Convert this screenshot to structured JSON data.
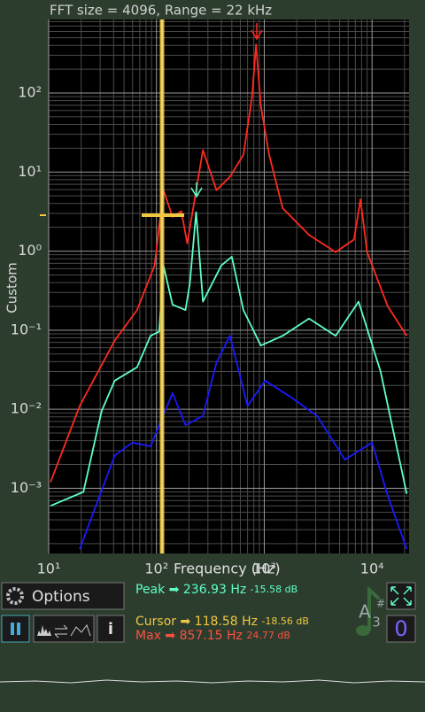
{
  "header": {
    "title": "FFT size = 4096, Range = 22 kHz"
  },
  "chart_data": {
    "type": "line",
    "x_label": "Frequency (Hz)",
    "y_label": "Custom",
    "log_x": true,
    "log_y": true,
    "grid": true,
    "xlim": [
      10,
      22050
    ],
    "ylim": [
      0.00015,
      850
    ],
    "xticks": [
      {
        "value": 10,
        "label": "10¹"
      },
      {
        "value": 100,
        "label": "10²"
      },
      {
        "value": 1000,
        "label": "10³"
      },
      {
        "value": 10000,
        "label": "10⁴"
      }
    ],
    "yticks": [
      {
        "value": 0.001,
        "label": "10⁻³"
      },
      {
        "value": 0.01,
        "label": "10⁻²"
      },
      {
        "value": 0.1,
        "label": "10⁻¹"
      },
      {
        "value": 1,
        "label": "10⁰"
      },
      {
        "value": 10,
        "label": "10¹"
      },
      {
        "value": 100,
        "label": "10²"
      }
    ],
    "series": [
      {
        "color": "#ff2a1f",
        "x": [
          10.4,
          19.4,
          41,
          66,
          96,
          116,
          141,
          170,
          193,
          270,
          360,
          480,
          640,
          770,
          840,
          930,
          1110,
          1480,
          2600,
          4600,
          6800,
          7800,
          9000,
          14000,
          21000
        ],
        "values": [
          0.0012,
          0.011,
          0.074,
          0.18,
          0.66,
          5.9,
          2.7,
          3.2,
          1.25,
          19,
          5.9,
          8.7,
          16.5,
          88,
          410,
          68,
          16.5,
          3.5,
          1.6,
          0.97,
          1.4,
          4.5,
          0.97,
          0.2,
          0.085
        ]
      },
      {
        "color": "#5effc8",
        "x": [
          10.4,
          21,
          31,
          41,
          66,
          88,
          106,
          116,
          141,
          186,
          204,
          233,
          270,
          400,
          500,
          640,
          930,
          1480,
          2600,
          4600,
          7500,
          12000,
          21000
        ],
        "values": [
          0.0006,
          0.0009,
          0.0095,
          0.023,
          0.034,
          0.085,
          0.096,
          0.66,
          0.21,
          0.18,
          0.39,
          3.1,
          0.23,
          0.66,
          0.85,
          0.18,
          0.064,
          0.085,
          0.14,
          0.085,
          0.23,
          0.03,
          0.00085
        ]
      },
      {
        "color": "#1a1aff",
        "x": [
          19.4,
          41,
          60,
          88,
          141,
          186,
          270,
          360,
          480,
          700,
          1020,
          1800,
          3100,
          5600,
          10000,
          14000,
          21000
        ],
        "values": [
          0.00017,
          0.0026,
          0.0038,
          0.0034,
          0.016,
          0.0063,
          0.0082,
          0.039,
          0.085,
          0.011,
          0.023,
          0.014,
          0.0082,
          0.0023,
          0.0038,
          0.0008,
          0.00017
        ]
      }
    ]
  },
  "controls": {
    "options": "Options",
    "info": "i",
    "reset": "0"
  },
  "readouts": {
    "peak": {
      "label": "Peak",
      "arrow": "➡",
      "freq": "236.93 Hz",
      "level": "-15.58 dB"
    },
    "cursor": {
      "label": "Cursor",
      "arrow": "➡",
      "freq": "118.58 Hz",
      "level": "-18.56 dB"
    },
    "max": {
      "label": "Max",
      "arrow": "➡",
      "freq": "857.15 Hz",
      "level": "24.77 dB"
    }
  },
  "note": {
    "letter": "A",
    "accidental": "#",
    "octave": "3"
  }
}
